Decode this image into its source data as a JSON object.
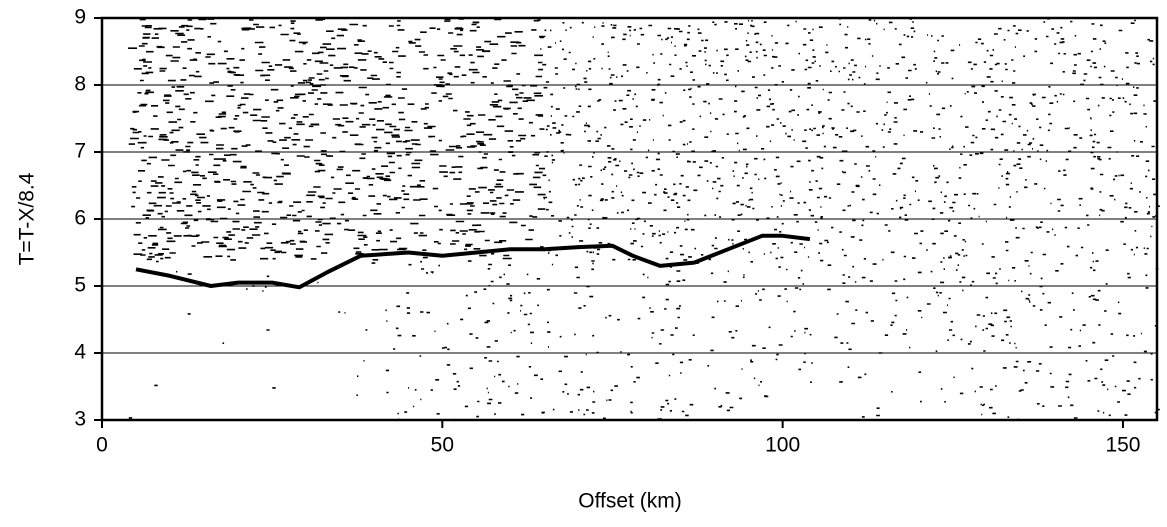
{
  "chart_data": {
    "type": "line",
    "x_label": "Offset (km)",
    "y_label": "T=T-X/8.4",
    "x": [
      5,
      10,
      16,
      20,
      25,
      29,
      33,
      38,
      45,
      50,
      55,
      60,
      65,
      70,
      75,
      78,
      82,
      87,
      92,
      97,
      100,
      104
    ],
    "values": [
      5.25,
      5.15,
      5.0,
      5.05,
      5.05,
      4.98,
      5.2,
      5.45,
      5.5,
      5.45,
      5.5,
      5.55,
      5.55,
      5.58,
      5.6,
      5.45,
      5.3,
      5.35,
      5.55,
      5.75,
      5.75,
      5.7
    ],
    "color": "#000000",
    "xlim": [
      0,
      155
    ],
    "xticks": [
      0,
      50,
      100,
      150
    ],
    "ylim": [
      3,
      9
    ],
    "yticks": [
      3,
      4,
      5,
      6,
      7,
      8,
      9
    ],
    "grid": true
  }
}
